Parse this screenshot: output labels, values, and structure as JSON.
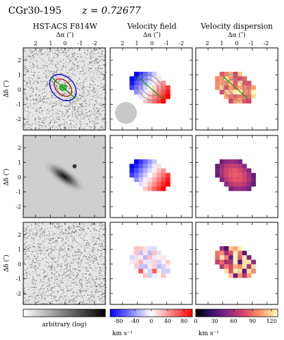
{
  "figure": {
    "object_name": "CGr30-195",
    "redshift_label": "z = 0.72677",
    "column_titles": [
      "HST-ACS F814W",
      "Velocity field",
      "Velocity dispersion"
    ],
    "x_axis_label": "Δα (″)",
    "y_axis_label": "Δδ (″)",
    "x_ticks": [
      "2",
      "1",
      "0",
      "-1",
      "-2"
    ],
    "y_ticks": [
      "2",
      "1",
      "0",
      "-1",
      "-2"
    ],
    "rows": [
      "observed",
      "model",
      "residual"
    ],
    "colorbars": [
      {
        "name": "image",
        "label": "arbitrary (log)",
        "ticks": [],
        "colors": [
          "#ffffff",
          "#000000"
        ]
      },
      {
        "name": "velocity",
        "label": "km s⁻¹",
        "range": [
          -100,
          100
        ],
        "ticks": [
          "-80",
          "-40",
          "0",
          "40",
          "80"
        ],
        "colors": [
          "#0000ff",
          "#ffffff",
          "#ff0000"
        ]
      },
      {
        "name": "dispersion",
        "label": "km s⁻¹",
        "range": [
          0,
          130
        ],
        "ticks": [
          "0",
          "30",
          "60",
          "90",
          "120"
        ],
        "colors": [
          "#000000",
          "#3b0f70",
          "#8c2981",
          "#de4968",
          "#fe9f6d",
          "#fcfdbf"
        ]
      }
    ],
    "colors": {
      "contour_inner": "#00a000",
      "contour_mid": "#c00000",
      "contour_outer": "#0000cc",
      "psf_disk": "#c8c8c8",
      "major_axis": "#00a000"
    }
  }
}
